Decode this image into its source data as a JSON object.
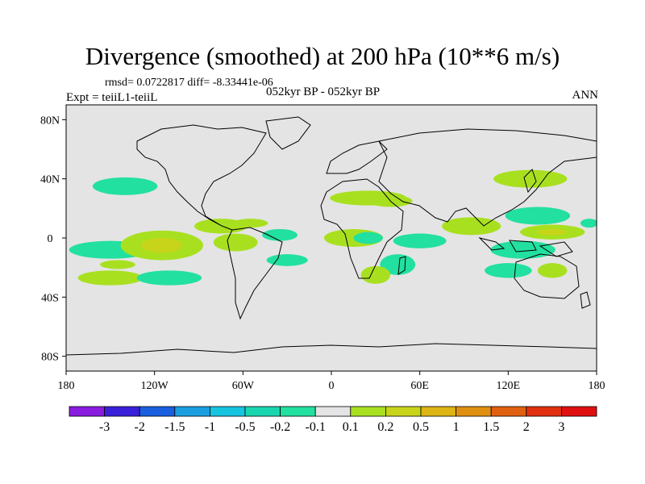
{
  "title": "Divergence (smoothed) at 200 hPa (10**6 m/s)",
  "rmsd_text": "rmsd= 0.0722817 diff= -8.33441e-06",
  "experiment_text": "Expt = teiiL1-teiiL",
  "period_text": "052kyr BP - 052kyr BP",
  "season": "ANN",
  "lat_ticks": [
    {
      "value": 80,
      "label": "80N"
    },
    {
      "value": 40,
      "label": "40N"
    },
    {
      "value": 0,
      "label": "0"
    },
    {
      "value": -40,
      "label": "40S"
    },
    {
      "value": -80,
      "label": "80S"
    }
  ],
  "lon_ticks": [
    {
      "value": -180,
      "label": "180"
    },
    {
      "value": -120,
      "label": "120W"
    },
    {
      "value": -60,
      "label": "60W"
    },
    {
      "value": 0,
      "label": "0"
    },
    {
      "value": 60,
      "label": "60E"
    },
    {
      "value": 120,
      "label": "120E"
    },
    {
      "value": 180,
      "label": "180"
    }
  ],
  "colorbar": {
    "colors": [
      "#8a1ce0",
      "#3a20d8",
      "#1a5fe0",
      "#1a9ee0",
      "#16c4e0",
      "#1ad6b0",
      "#22e0a0",
      "#e4e4e4",
      "#a8e020",
      "#c8d41a",
      "#dcb414",
      "#e09010",
      "#e06010",
      "#e03010",
      "#e01010"
    ],
    "labels": [
      "-3",
      "-2",
      "-1.5",
      "-1",
      "-0.5",
      "-0.2",
      "-0.1",
      "0.1",
      "0.2",
      "0.5",
      "1",
      "1.5",
      "2",
      "3"
    ]
  },
  "chart_data": {
    "type": "map",
    "projection": "cylindrical equidistant",
    "lon_range": [
      -180,
      180
    ],
    "lat_range": [
      -90,
      90
    ],
    "variable": "200 hPa divergence difference (smoothed)",
    "units": "10**6 m/s",
    "background_class": "-0.1 to 0.1",
    "regions": [
      {
        "lon": -140,
        "lat": 35,
        "rx": 22,
        "ry": 6,
        "value": -0.15
      },
      {
        "lon": -150,
        "lat": -8,
        "rx": 28,
        "ry": 6,
        "value": -0.15
      },
      {
        "lon": -115,
        "lat": -5,
        "rx": 28,
        "ry": 10,
        "value": 0.15
      },
      {
        "lon": -115,
        "lat": -5,
        "rx": 14,
        "ry": 5,
        "value": 0.3
      },
      {
        "lon": -145,
        "lat": -18,
        "rx": 12,
        "ry": 3,
        "value": 0.15
      },
      {
        "lon": -150,
        "lat": -27,
        "rx": 22,
        "ry": 5,
        "value": 0.15
      },
      {
        "lon": -110,
        "lat": -27,
        "rx": 22,
        "ry": 5,
        "value": -0.15
      },
      {
        "lon": -75,
        "lat": 8,
        "rx": 18,
        "ry": 5,
        "value": 0.15
      },
      {
        "lon": -55,
        "lat": 10,
        "rx": 12,
        "ry": 3,
        "value": 0.15
      },
      {
        "lon": -65,
        "lat": -3,
        "rx": 15,
        "ry": 6,
        "value": 0.15
      },
      {
        "lon": -35,
        "lat": 2,
        "rx": 12,
        "ry": 4,
        "value": -0.15
      },
      {
        "lon": -30,
        "lat": -15,
        "rx": 14,
        "ry": 4,
        "value": -0.15
      },
      {
        "lon": 25,
        "lat": 27,
        "rx": 26,
        "ry": 5,
        "value": 0.15
      },
      {
        "lon": 40,
        "lat": 25,
        "rx": 15,
        "ry": 4,
        "value": 0.15
      },
      {
        "lon": 15,
        "lat": 0,
        "rx": 20,
        "ry": 6,
        "value": 0.15
      },
      {
        "lon": 25,
        "lat": 0,
        "rx": 10,
        "ry": 4,
        "value": -0.15
      },
      {
        "lon": 60,
        "lat": -2,
        "rx": 18,
        "ry": 5,
        "value": -0.15
      },
      {
        "lon": 45,
        "lat": -18,
        "rx": 12,
        "ry": 7,
        "value": -0.15
      },
      {
        "lon": 30,
        "lat": -25,
        "rx": 10,
        "ry": 6,
        "value": 0.15
      },
      {
        "lon": 95,
        "lat": 8,
        "rx": 20,
        "ry": 6,
        "value": 0.15
      },
      {
        "lon": 135,
        "lat": 40,
        "rx": 25,
        "ry": 6,
        "value": 0.15
      },
      {
        "lon": 140,
        "lat": 15,
        "rx": 22,
        "ry": 6,
        "value": -0.15
      },
      {
        "lon": 150,
        "lat": 4,
        "rx": 22,
        "ry": 5,
        "value": 0.15
      },
      {
        "lon": 150,
        "lat": 4,
        "rx": 10,
        "ry": 2,
        "value": 0.3
      },
      {
        "lon": 130,
        "lat": -8,
        "rx": 22,
        "ry": 6,
        "value": -0.15
      },
      {
        "lon": 120,
        "lat": -22,
        "rx": 16,
        "ry": 5,
        "value": -0.15
      },
      {
        "lon": 150,
        "lat": -22,
        "rx": 10,
        "ry": 5,
        "value": 0.15
      },
      {
        "lon": 175,
        "lat": 10,
        "rx": 6,
        "ry": 3,
        "value": -0.15
      }
    ]
  }
}
